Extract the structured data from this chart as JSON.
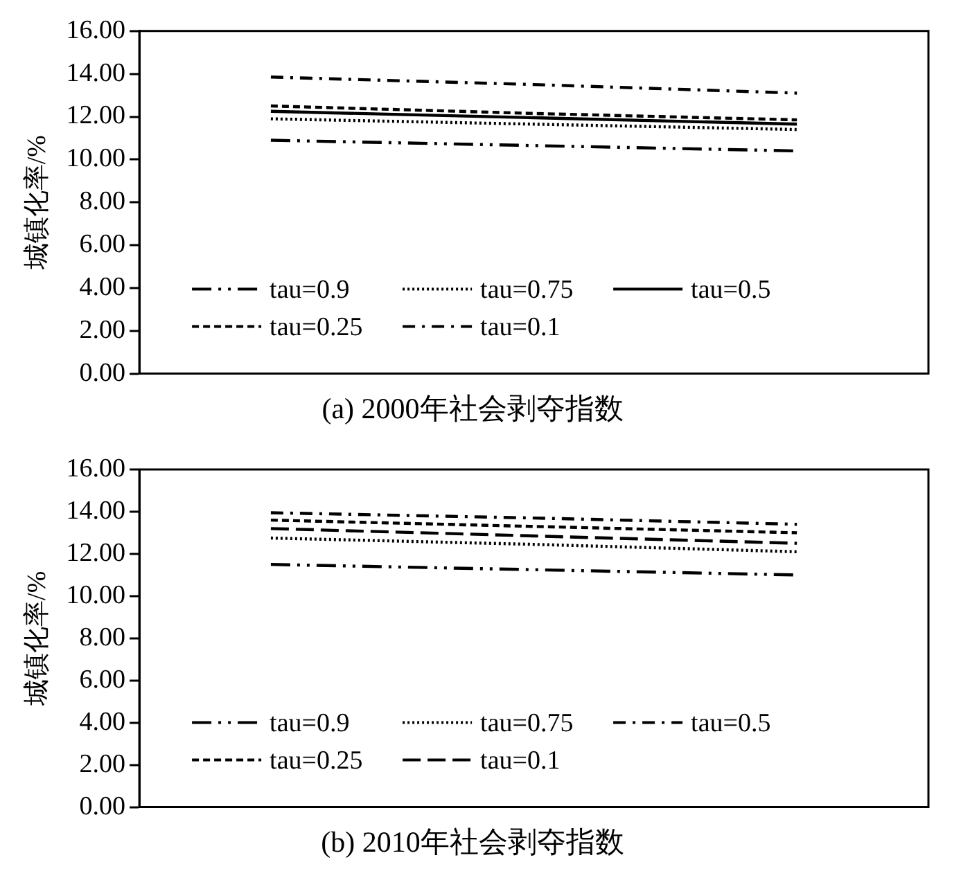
{
  "chart_data": [
    {
      "type": "line",
      "title": "(a) 2000年社会剥夺指数",
      "ylabel": "城镇化率/%",
      "categories": [
        null,
        null,
        null
      ],
      "ylim": [
        0,
        16
      ],
      "yticks": [
        {
          "value": 0,
          "label": "0.00"
        },
        {
          "value": 2,
          "label": "2.00"
        },
        {
          "value": 4,
          "label": "4.00"
        },
        {
          "value": 6,
          "label": "6.00"
        },
        {
          "value": 8,
          "label": "8.00"
        },
        {
          "value": 10,
          "label": "10.00"
        },
        {
          "value": 12,
          "label": "12.00"
        },
        {
          "value": 14,
          "label": "14.00"
        },
        {
          "value": 16,
          "label": "16.00"
        }
      ],
      "grid": false,
      "legend": "bottom",
      "marker": "none",
      "tick_labels": "y",
      "series": [
        {
          "name": "tau=0.9",
          "color": "#000000",
          "line_style": "dashdotdot",
          "values": [
            10.9,
            10.65,
            10.4
          ]
        },
        {
          "name": "tau=0.75",
          "color": "#000000",
          "line_style": "dotted",
          "values": [
            11.9,
            11.65,
            11.4
          ]
        },
        {
          "name": "tau=0.5",
          "color": "#000000",
          "line_style": "solid",
          "values": [
            12.25,
            11.95,
            11.65
          ]
        },
        {
          "name": "tau=0.25",
          "color": "#000000",
          "line_style": "dashed",
          "values": [
            12.5,
            12.15,
            11.85
          ]
        },
        {
          "name": "tau=0.1",
          "color": "#000000",
          "line_style": "dashdot",
          "values": [
            13.85,
            13.5,
            13.1
          ]
        }
      ]
    },
    {
      "type": "line",
      "title": "(b) 2010年社会剥夺指数",
      "ylabel": "城镇化率/%",
      "categories": [
        null,
        null,
        null
      ],
      "ylim": [
        0,
        16
      ],
      "yticks": [
        {
          "value": 0,
          "label": "0.00"
        },
        {
          "value": 2,
          "label": "2.00"
        },
        {
          "value": 4,
          "label": "4.00"
        },
        {
          "value": 6,
          "label": "6.00"
        },
        {
          "value": 8,
          "label": "8.00"
        },
        {
          "value": 10,
          "label": "10.00"
        },
        {
          "value": 12,
          "label": "12.00"
        },
        {
          "value": 14,
          "label": "14.00"
        },
        {
          "value": 16,
          "label": "16.00"
        }
      ],
      "grid": false,
      "legend": "bottom",
      "marker": "none",
      "tick_labels": "y",
      "series": [
        {
          "name": "tau=0.9",
          "color": "#000000",
          "line_style": "dashdotdot",
          "values": [
            11.5,
            11.25,
            11.0
          ]
        },
        {
          "name": "tau=0.75",
          "color": "#000000",
          "line_style": "dotted",
          "values": [
            12.75,
            12.45,
            12.1
          ]
        },
        {
          "name": "tau=0.5",
          "color": "#000000",
          "line_style": "dashdot",
          "values": [
            13.95,
            13.7,
            13.4
          ]
        },
        {
          "name": "tau=0.25",
          "color": "#000000",
          "line_style": "dashed",
          "values": [
            13.6,
            13.3,
            13.0
          ]
        },
        {
          "name": "tau=0.1",
          "color": "#000000",
          "line_style": "longdash",
          "values": [
            13.2,
            12.85,
            12.5
          ]
        }
      ]
    }
  ]
}
